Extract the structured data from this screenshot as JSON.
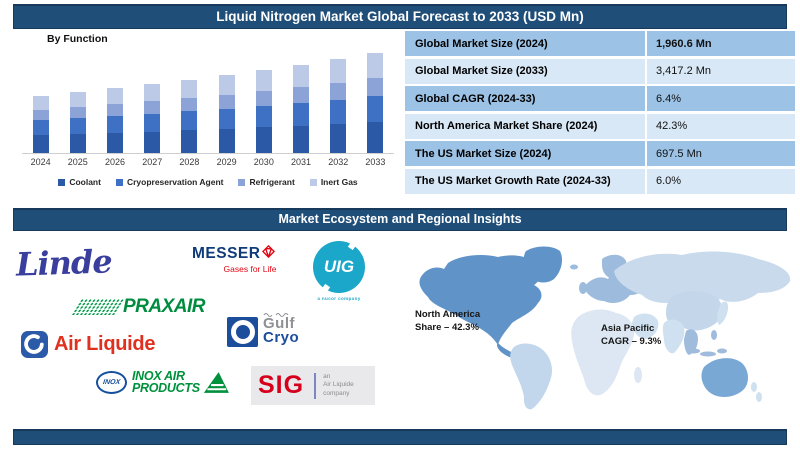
{
  "header": {
    "title": "Liquid Nitrogen Market Global Forecast to 2033 (USD Mn)"
  },
  "section_banner": {
    "title": "Market Ecosystem and Regional Insights"
  },
  "chart_data": {
    "type": "bar",
    "stacked": true,
    "title": "By Function",
    "categories": [
      "2024",
      "2025",
      "2026",
      "2027",
      "2028",
      "2029",
      "2030",
      "2031",
      "2032",
      "2033"
    ],
    "series": [
      {
        "name": "Coolant",
        "color": "#2B59A5",
        "values": [
          607.8,
          646.7,
          688.1,
          732.1,
          779.0,
          828.8,
          881.9,
          938.3,
          998.3,
          1059.3
        ]
      },
      {
        "name": "Cryopreservation Agent",
        "color": "#3E71C4",
        "values": [
          509.8,
          542.4,
          577.1,
          614.0,
          653.3,
          695.1,
          739.6,
          786.9,
          837.3,
          888.5
        ]
      },
      {
        "name": "Refrigerant",
        "color": "#8CA3D8",
        "values": [
          352.9,
          375.5,
          399.5,
          425.1,
          452.3,
          481.2,
          512.0,
          544.8,
          579.7,
          615.1
        ]
      },
      {
        "name": "Inert Gas",
        "color": "#BCC9E7",
        "values": [
          490.2,
          521.5,
          554.9,
          590.4,
          628.2,
          668.4,
          711.2,
          756.7,
          805.1,
          854.3
        ]
      }
    ],
    "totals": [
      1960.6,
      2086.1,
      2219.6,
      2361.6,
      2512.8,
      2673.6,
      2844.7,
      3026.7,
      3220.4,
      3417.2
    ],
    "xlabel": "",
    "ylabel": "",
    "ylim": [
      0,
      3600
    ],
    "grid": false,
    "legend_position": "bottom"
  },
  "stats_table": {
    "rows": [
      {
        "label": "Global Market Size (2024)",
        "value": "1,960.6 Mn"
      },
      {
        "label": "Global Market Size (2033)",
        "value": "3,417.2 Mn"
      },
      {
        "label": "Global CAGR (2024-33)",
        "value": "6.4%"
      },
      {
        "label": "North America Market Share (2024)",
        "value": "42.3%"
      },
      {
        "label": "The US Market Size (2024)",
        "value": "697.5 Mn"
      },
      {
        "label": "The US Market Growth Rate (2024-33)",
        "value": "6.0%"
      }
    ]
  },
  "logos": {
    "linde": {
      "text": "Linde",
      "color": "#3A3F9E"
    },
    "messer": {
      "text": "MESSER",
      "tagline": "Gases for Life",
      "wordmark_color": "#0F3B7A",
      "accent_color": "#E30613"
    },
    "uig": {
      "text": "UIG",
      "tagline": "a nucor company",
      "color": "#1BA7C9"
    },
    "praxair": {
      "text": "PRAXAIR",
      "color": "#008C3F"
    },
    "gulf_cryo": {
      "line1": "Gulf",
      "line2": "Cryo",
      "grey": "#8E9094",
      "blue": "#1C4E9C"
    },
    "air_liquide": {
      "text": "Air Liquide",
      "text_color": "#E0301E",
      "icon_color": "#2B5AA8"
    },
    "inox": {
      "badge": "INOX",
      "line1": "INOX AIR",
      "line2": "PRODUCTS",
      "green": "#00913C",
      "blue": "#164FA0"
    },
    "sig": {
      "text": "SIG",
      "tag1": "an",
      "tag2": "Air Liquide",
      "tag3": "company",
      "red": "#D6001C"
    }
  },
  "map": {
    "annotations": [
      {
        "line1": "North America",
        "line2": "Share – 42.3%"
      },
      {
        "line1": "Asia Pacific",
        "line2": "CAGR – 9.3%"
      }
    ]
  },
  "colors": {
    "banner_blue": "#1F4E79",
    "table_row_dark": "#9CC2E5",
    "table_row_light": "#D9E8F6"
  }
}
